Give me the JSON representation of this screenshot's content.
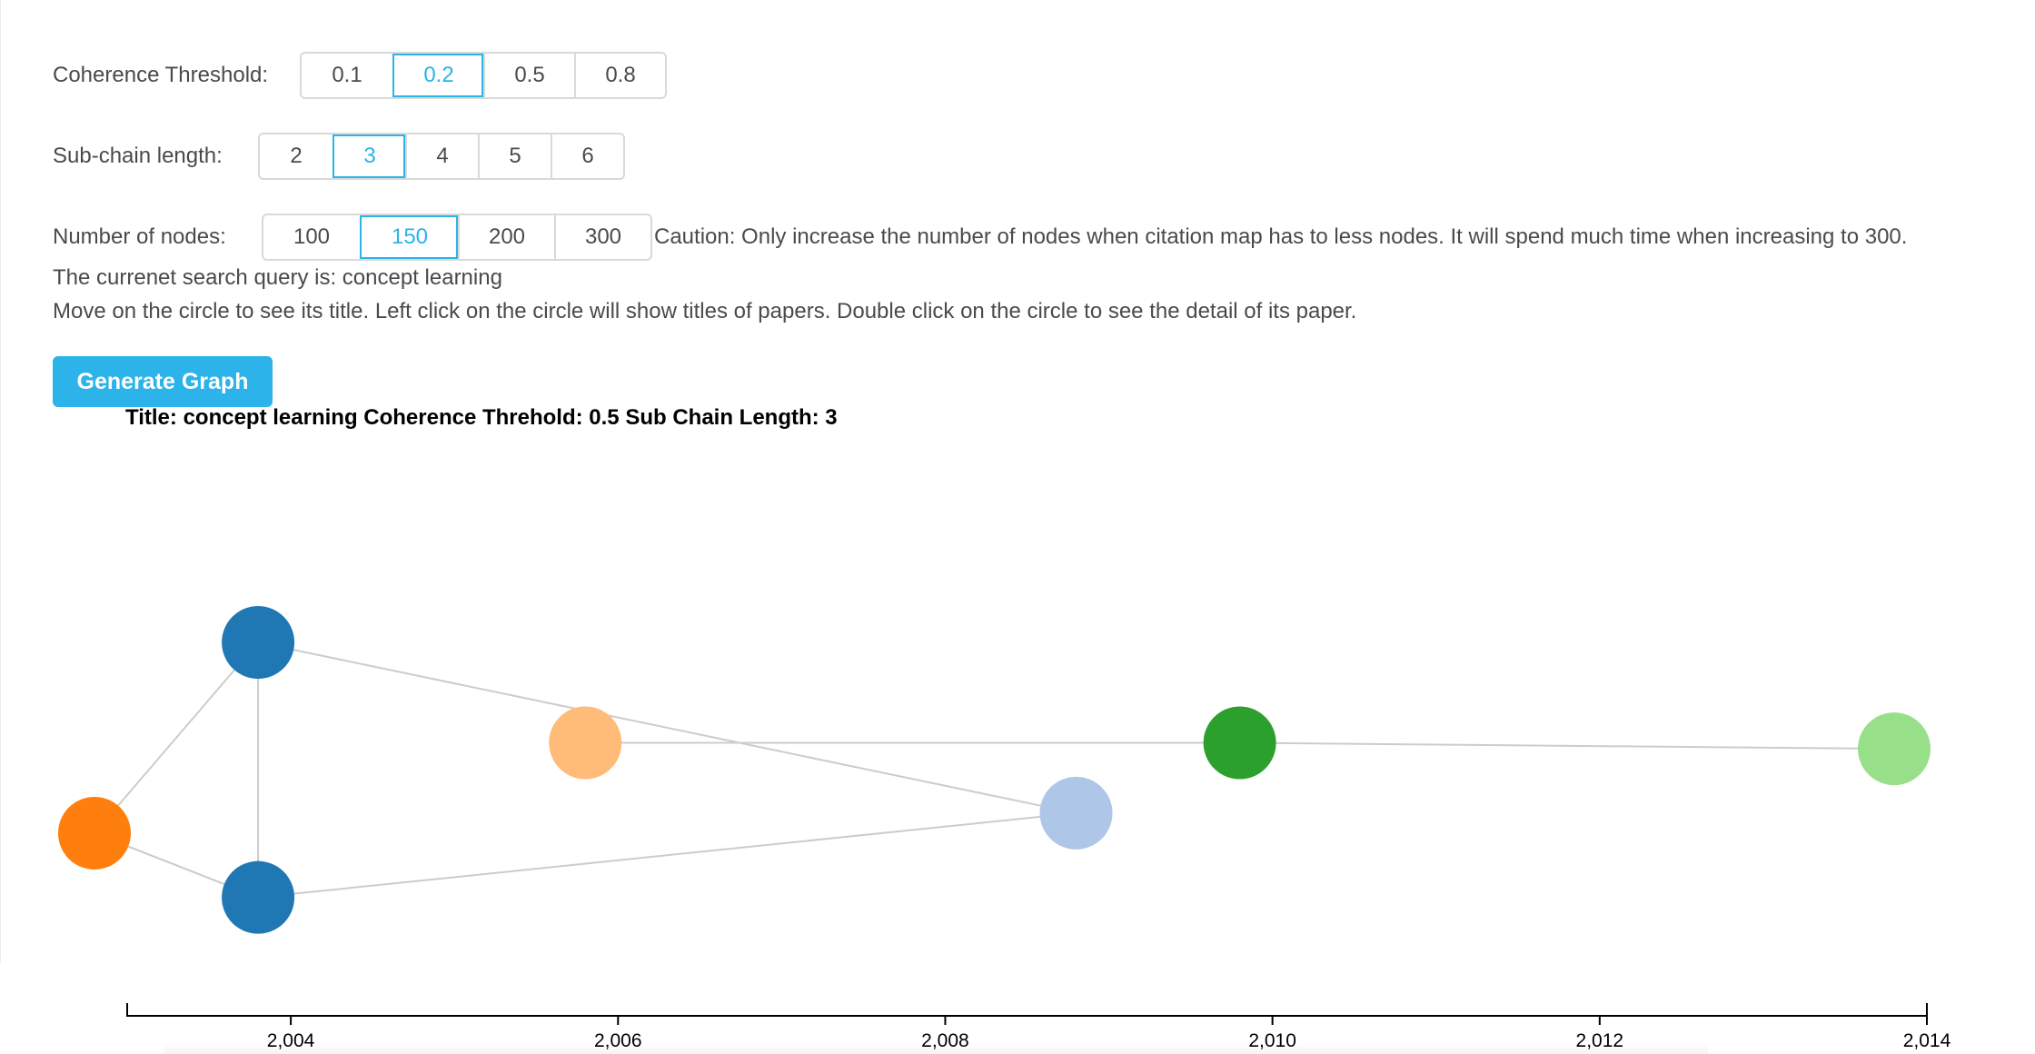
{
  "controls": {
    "coherence": {
      "label": "Coherence Threshold:",
      "options": [
        "0.1",
        "0.2",
        "0.5",
        "0.8"
      ],
      "selected": "0.2"
    },
    "subchain": {
      "label": "Sub-chain length:",
      "options": [
        "2",
        "3",
        "4",
        "5",
        "6"
      ],
      "selected": "3"
    },
    "nodes": {
      "label": "Number of nodes:",
      "options": [
        "100",
        "150",
        "200",
        "300"
      ],
      "selected": "150",
      "caution": "Caution: Only increase the number of nodes when citation map has to less nodes. It will spend much time when increasing to 300."
    }
  },
  "info": {
    "query_line": "The currenet search query is: concept learning",
    "help_line": "Move on the circle to see its title. Left click on the circle will show titles of papers. Double click on the circle to see the detail of its paper."
  },
  "generate_button": "Generate Graph",
  "graph": {
    "title": "Title: concept learning Coherence Threhold: 0.5 Sub Chain Length: 3",
    "axis": {
      "min": 2003,
      "max": 2014,
      "ticks": [
        2004,
        2006,
        2008,
        2010,
        2012,
        2014
      ],
      "tick_labels": [
        "2,004",
        "2,006",
        "2,008",
        "2,010",
        "2,012",
        "2,014"
      ]
    },
    "colors": {
      "edge": "#cccccc",
      "axis": "#000000"
    },
    "nodes": [
      {
        "id": "n-orange",
        "year": 2002.8,
        "lane": 0.95,
        "color": "#ff7f0e"
      },
      {
        "id": "n-blue-top",
        "year": 2003.8,
        "lane": 0.0,
        "color": "#1f77b4"
      },
      {
        "id": "n-blue-bottom",
        "year": 2003.8,
        "lane": 1.27,
        "color": "#1f77b4"
      },
      {
        "id": "n-peach",
        "year": 2005.8,
        "lane": 0.5,
        "color": "#ffbb78"
      },
      {
        "id": "n-lightblue",
        "year": 2008.8,
        "lane": 0.85,
        "color": "#aec7e8"
      },
      {
        "id": "n-green",
        "year": 2009.8,
        "lane": 0.5,
        "color": "#2ca02c"
      },
      {
        "id": "n-lightgreen",
        "year": 2013.8,
        "lane": 0.53,
        "color": "#98df8a"
      }
    ],
    "edges": [
      [
        "n-orange",
        "n-blue-top"
      ],
      [
        "n-orange",
        "n-blue-bottom"
      ],
      [
        "n-blue-top",
        "n-blue-bottom"
      ],
      [
        "n-blue-top",
        "n-lightblue"
      ],
      [
        "n-blue-bottom",
        "n-lightblue"
      ],
      [
        "n-peach",
        "n-green"
      ],
      [
        "n-green",
        "n-lightgreen"
      ]
    ]
  }
}
